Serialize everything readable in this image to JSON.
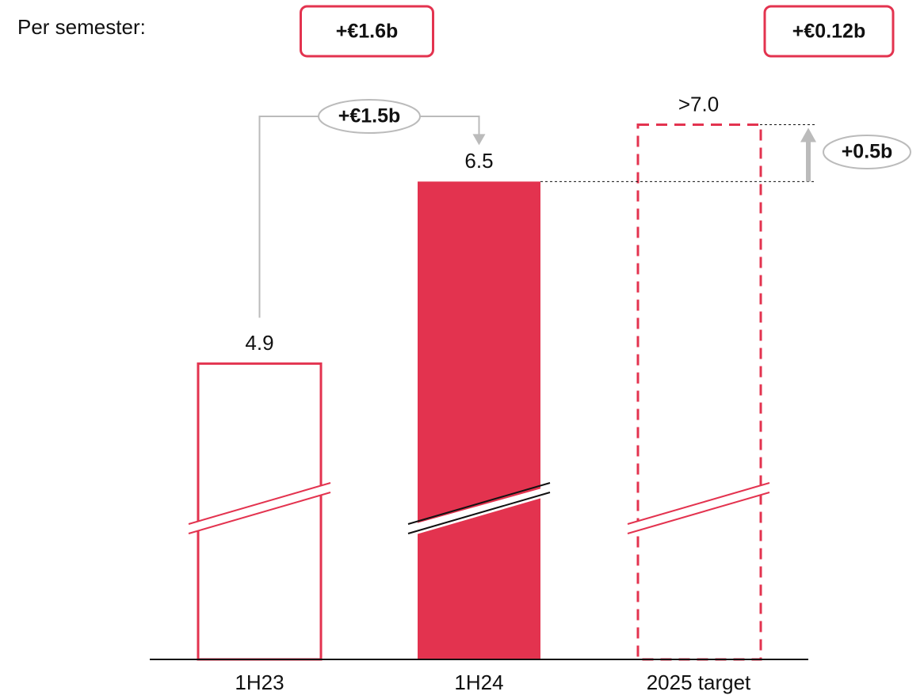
{
  "chart_data": {
    "type": "bar",
    "subtitle": "Per semester:",
    "categories": [
      "1H23",
      "1H24",
      "2025 target"
    ],
    "values": [
      4.9,
      6.5,
      7.0
    ],
    "value_labels": [
      "4.9",
      "6.5",
      ">7.0"
    ],
    "bar_styles": [
      "outline",
      "filled",
      "dashed"
    ],
    "color": "#e3334f",
    "ylim": [
      2.3,
      7.4
    ],
    "annotations": [
      "+€1.6b",
      "+€0.12b",
      "+€1.5b",
      "+0.5b"
    ]
  }
}
